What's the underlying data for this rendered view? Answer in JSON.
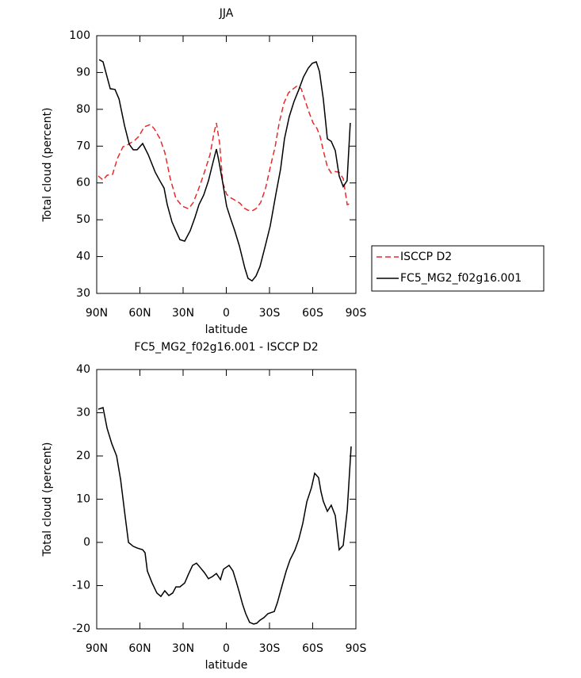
{
  "chart_data": [
    {
      "type": "line",
      "title": "JJA",
      "xlabel": "latitude",
      "ylabel": "Total cloud (percent)",
      "xlim": [
        90,
        -90
      ],
      "xticks": [
        {
          "value": 90,
          "label": "90N"
        },
        {
          "value": 60,
          "label": "60N"
        },
        {
          "value": 30,
          "label": "30N"
        },
        0,
        {
          "value": -30,
          "label": "30S"
        },
        {
          "value": -60,
          "label": "60S"
        },
        {
          "value": -90,
          "label": "90S"
        }
      ],
      "ylim": [
        30,
        100
      ],
      "yticks": [
        30,
        40,
        50,
        60,
        70,
        80,
        90,
        100
      ],
      "legend": "right",
      "series": [
        {
          "name": "ISCCP D2",
          "color": "#e8292b",
          "dash": true,
          "x": [
            88.9,
            85.6,
            82.8,
            79,
            75.7,
            71.8,
            68,
            63.6,
            60.8,
            57,
            52.6,
            49.8,
            46,
            42.7,
            38.9,
            35,
            30.6,
            26.2,
            22.9,
            19.6,
            15.7,
            11.3,
            8.6,
            6.9,
            4.7,
            2.5,
            -0.2,
            -2.9,
            -5.7,
            -9.5,
            -12.3,
            -15.1,
            -17.9,
            -20.6,
            -23.9,
            -27.3,
            -30.6,
            -33.9,
            -36.7,
            -40,
            -43.2,
            -46.5,
            -49.3,
            -52,
            -54.8,
            -57.5,
            -60.3,
            -63,
            -65.2,
            -67.4,
            -70.2,
            -72.9,
            -75.7,
            -78.4,
            -81.2,
            -84,
            -86.7
          ],
          "values": [
            61.9,
            60.8,
            62.1,
            62.3,
            66.6,
            69.8,
            70.5,
            71.6,
            72.6,
            75.2,
            75.9,
            74.6,
            72,
            68.3,
            61.2,
            55.8,
            53.7,
            53,
            54.7,
            58,
            62.3,
            67.7,
            73.5,
            76.3,
            70.9,
            60.1,
            56.9,
            56,
            55.4,
            54.5,
            53.2,
            52.6,
            52.4,
            53,
            54.7,
            58.6,
            64.4,
            69.8,
            76.3,
            81.7,
            84.5,
            85.6,
            86.4,
            85.6,
            82.3,
            79.1,
            76.3,
            74.8,
            72.6,
            68.8,
            64.4,
            62.7,
            63.1,
            62.9,
            61.2,
            54.1,
            54.5
          ]
        },
        {
          "name": "FC5_MG2_f02g16.001",
          "color": "#000000",
          "dash": false,
          "x": [
            88.3,
            85.6,
            80.6,
            77.3,
            74.5,
            70.7,
            67.4,
            64.6,
            61.9,
            58.1,
            54.2,
            49.3,
            45.4,
            43.2,
            41,
            37.7,
            35,
            32.2,
            28.9,
            25.1,
            21.8,
            19,
            15.7,
            12.4,
            9.7,
            6.9,
            5.3,
            2.5,
            -0.2,
            -2.9,
            -5.7,
            -9.1,
            -12.9,
            -15.1,
            -17.9,
            -20.6,
            -23.4,
            -27.2,
            -30.5,
            -34.4,
            -37.7,
            -40.4,
            -43.7,
            -47,
            -50.3,
            -53.6,
            -56.9,
            -59.7,
            -62.5,
            -64.7,
            -67.4,
            -70.2,
            -72.9,
            -75.7,
            -78.4,
            -81.2,
            -83.9,
            -86.1
          ],
          "values": [
            93.5,
            92.9,
            85.6,
            85.4,
            82.8,
            75.6,
            70.5,
            69,
            69,
            70.7,
            67.7,
            62.9,
            60.1,
            58.6,
            54.1,
            49.4,
            47,
            44.6,
            44.2,
            47,
            50.6,
            54.1,
            56.7,
            60.6,
            64.9,
            69.2,
            66.2,
            60.1,
            53.7,
            50.4,
            47.2,
            42.9,
            36.9,
            34.1,
            33.4,
            34.7,
            37.3,
            43.1,
            48.3,
            56.9,
            63.8,
            72,
            78,
            82.1,
            85.3,
            88.8,
            91.2,
            92.5,
            92.9,
            90.3,
            82.8,
            72,
            71.3,
            68.8,
            61.9,
            59,
            60.6,
            76.3
          ]
        }
      ]
    },
    {
      "type": "line",
      "title": "FC5_MG2_f02g16.001 - ISCCP D2",
      "xlabel": "latitude",
      "ylabel": "Total cloud (percent)",
      "xlim": [
        90,
        -90
      ],
      "xticks": [
        {
          "value": 90,
          "label": "90N"
        },
        {
          "value": 60,
          "label": "60N"
        },
        {
          "value": 30,
          "label": "30N"
        },
        0,
        {
          "value": -30,
          "label": "30S"
        },
        {
          "value": -60,
          "label": "60S"
        },
        {
          "value": -90,
          "label": "90S"
        }
      ],
      "ylim": [
        -20,
        40
      ],
      "yticks": [
        -20,
        -10,
        0,
        10,
        20,
        30,
        40
      ],
      "series": [
        {
          "color": "#000000",
          "dash": false,
          "x": [
            88.9,
            85.6,
            82.8,
            79.5,
            76.2,
            73.4,
            70.7,
            67.9,
            64.7,
            61.9,
            58.1,
            56.4,
            54.8,
            51.5,
            48.2,
            45.4,
            42.7,
            39.9,
            37.2,
            35,
            32.2,
            28.9,
            26.2,
            23.4,
            20.7,
            17.9,
            15.2,
            12.4,
            9.7,
            6.9,
            4.1,
            1.9,
            -1.9,
            -4.6,
            -6.8,
            -9.1,
            -11.3,
            -13.5,
            -16.2,
            -19,
            -21.2,
            -23.4,
            -26.2,
            -28.9,
            -33.3,
            -35.5,
            -38.8,
            -41.6,
            -44.3,
            -47.6,
            -50.3,
            -53.1,
            -55.9,
            -59.2,
            -61.4,
            -64.1,
            -65.8,
            -67.4,
            -70.2,
            -72.9,
            -75.7,
            -78.4,
            -81.2,
            -84,
            -86.7
          ],
          "values": [
            30.8,
            31.2,
            26.4,
            22.8,
            20,
            14.5,
            7.2,
            0,
            -0.9,
            -1.3,
            -1.7,
            -2.4,
            -6.6,
            -9.4,
            -11.7,
            -12.5,
            -11.2,
            -12.3,
            -11.7,
            -10.3,
            -10.3,
            -9.4,
            -7.3,
            -5.3,
            -4.8,
            -5.9,
            -7,
            -8.4,
            -7.9,
            -7.2,
            -8.6,
            -6.2,
            -5.3,
            -6.6,
            -9,
            -11.6,
            -14.3,
            -16.5,
            -18.5,
            -18.9,
            -18.7,
            -18,
            -17.4,
            -16.5,
            -16,
            -13.9,
            -9.9,
            -6.6,
            -4,
            -1.8,
            0.7,
            4.4,
            9.4,
            12.7,
            16,
            15,
            11.7,
            9.5,
            7.2,
            8.6,
            6.2,
            -1.7,
            -0.7,
            7.5,
            22.2
          ]
        }
      ]
    }
  ]
}
